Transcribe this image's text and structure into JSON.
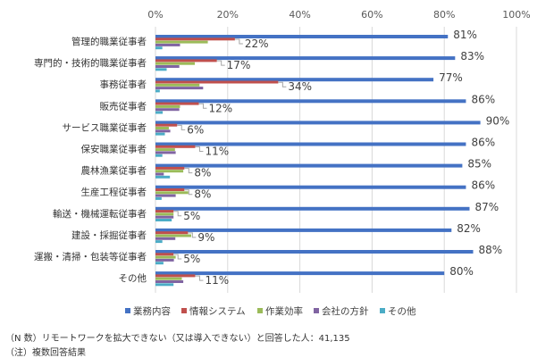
{
  "chart_data": {
    "type": "bar",
    "orientation": "horizontal",
    "xlim": [
      0,
      100
    ],
    "ticks": [
      "0%",
      "20%",
      "40%",
      "60%",
      "80%",
      "100%"
    ],
    "tick_values": [
      0,
      20,
      40,
      60,
      80,
      100
    ],
    "categories": [
      "管理的職業従事者",
      "専門的・技術的職業従事者",
      "事務従事者",
      "販売従事者",
      "サービス職業従事者",
      "保安職業従事者",
      "農林漁業従事者",
      "生産工程従事者",
      "輸送・機械運転従事者",
      "建設・採掘従事者",
      "運搬・清掃・包装等従事者",
      "その他"
    ],
    "series": [
      {
        "name": "業務内容",
        "color": "#4472C4",
        "values": [
          81,
          83,
          77,
          86,
          90,
          86,
          85,
          86,
          87,
          82,
          88,
          80
        ],
        "labels": [
          "81%",
          "83%",
          "77%",
          "86%",
          "90%",
          "86%",
          "85%",
          "86%",
          "87%",
          "82%",
          "88%",
          "80%"
        ]
      },
      {
        "name": "情報システム",
        "color": "#C0504D",
        "values": [
          22,
          17,
          34,
          12,
          6,
          11,
          8,
          8,
          5,
          9,
          5,
          11
        ],
        "labels": [
          "22%",
          "17%",
          "34%",
          "12%",
          "6%",
          "11%",
          "8%",
          "8%",
          "5%",
          "9%",
          "5%",
          "11%"
        ]
      },
      {
        "name": "作業効率",
        "color": "#9BBB59",
        "values": [
          14.5,
          10.9,
          12.2,
          6.8,
          3.7,
          5.4,
          7.7,
          9.1,
          5,
          9.9,
          5.6,
          7.3
        ]
      },
      {
        "name": "会社の方針",
        "color": "#8064A2",
        "values": [
          6.8,
          6.6,
          13.2,
          6.6,
          4.1,
          5.6,
          2.3,
          5.6,
          5,
          5.5,
          5.1,
          7.7
        ]
      },
      {
        "name": "その他",
        "color": "#4BACC6",
        "values": [
          1.9,
          3.1,
          1.2,
          2,
          2.6,
          1.9,
          4,
          1.7,
          4.5,
          1.9,
          2.2,
          5
        ]
      }
    ],
    "legend_position": "bottom",
    "grid": true
  },
  "notes": [
    "（N 数）リモートワークを拡大できない（又は導入できない）と回答した人：41,135",
    "（注）複数回答結果"
  ]
}
